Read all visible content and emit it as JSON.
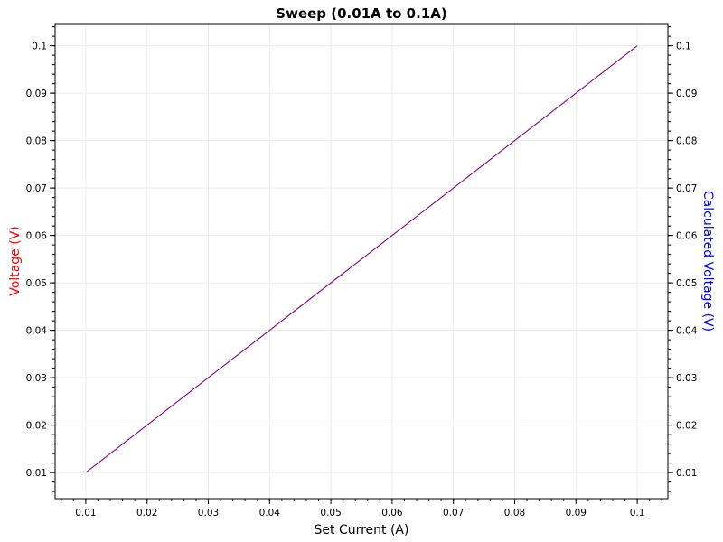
{
  "chart_data": {
    "type": "line",
    "title": "Sweep (0.01A to 0.1A)",
    "xlabel": "Set Current (A)",
    "ylabel_left": "Voltage (V)",
    "ylabel_right": "Calculated Voltage (V)",
    "xlim": [
      0.005,
      0.105
    ],
    "ylim": [
      0.0045,
      0.1045
    ],
    "x_ticks": [
      "0.01",
      "0.02",
      "0.03",
      "0.04",
      "0.05",
      "0.06",
      "0.07",
      "0.08",
      "0.09",
      "0.1"
    ],
    "y_ticks": [
      "0.01",
      "0.02",
      "0.03",
      "0.04",
      "0.05",
      "0.06",
      "0.07",
      "0.08",
      "0.09",
      "0.1"
    ],
    "grid": true,
    "series": [
      {
        "color": "#ff0000",
        "x": [
          0.01,
          0.1
        ],
        "y": [
          0.01,
          0.1
        ]
      },
      {
        "color": "#0000ff",
        "x": [
          0.01,
          0.1
        ],
        "y": [
          0.01,
          0.1
        ]
      }
    ],
    "colors": {
      "left_axis_label": "#ff0000",
      "right_axis_label": "#0000ff",
      "grid": "#ececec"
    }
  }
}
